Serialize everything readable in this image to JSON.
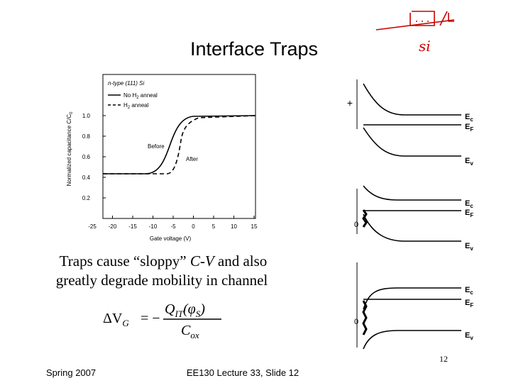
{
  "header": {
    "title": "Interface Traps",
    "note": "si"
  },
  "figure": {
    "legend": {
      "caption": "n-type (111) Si",
      "solid": [
        "No H",
        "2",
        " anneal"
      ],
      "dashed": [
        "H",
        "2",
        " anneal"
      ]
    },
    "ylabel": [
      "Normalized capacitance C/C",
      "0"
    ],
    "xlabel": "Gate voltage (V)",
    "xticks": [
      -25,
      -20,
      -15,
      -10,
      -5,
      0,
      5,
      10,
      15
    ],
    "yticks": [
      0.2,
      0.4,
      0.6,
      0.8,
      {
        "value": 1.0,
        "label": "1.0"
      }
    ],
    "annotations": [
      "Before",
      "After"
    ]
  },
  "bands": {
    "labels": [
      {
        "main": "E",
        "sub": "c"
      },
      {
        "main": "E",
        "sub": "F"
      },
      {
        "main": "E",
        "sub": "v"
      }
    ],
    "plus": "+",
    "zero": "0"
  },
  "body": {
    "line1": [
      "Traps cause “sloppy” ",
      "C-V",
      " and also"
    ],
    "line2": "greatly degrade mobility in channel",
    "equation": {
      "lhs": [
        "ΔV",
        "G"
      ],
      "eq": "= −",
      "num": [
        "Q",
        "IT",
        "(φ",
        "S",
        ")"
      ],
      "den": [
        "C",
        "ox"
      ]
    }
  },
  "footer": {
    "left": "Spring 2007",
    "center": "EE130 Lecture 33, Slide 12",
    "page": "12"
  }
}
